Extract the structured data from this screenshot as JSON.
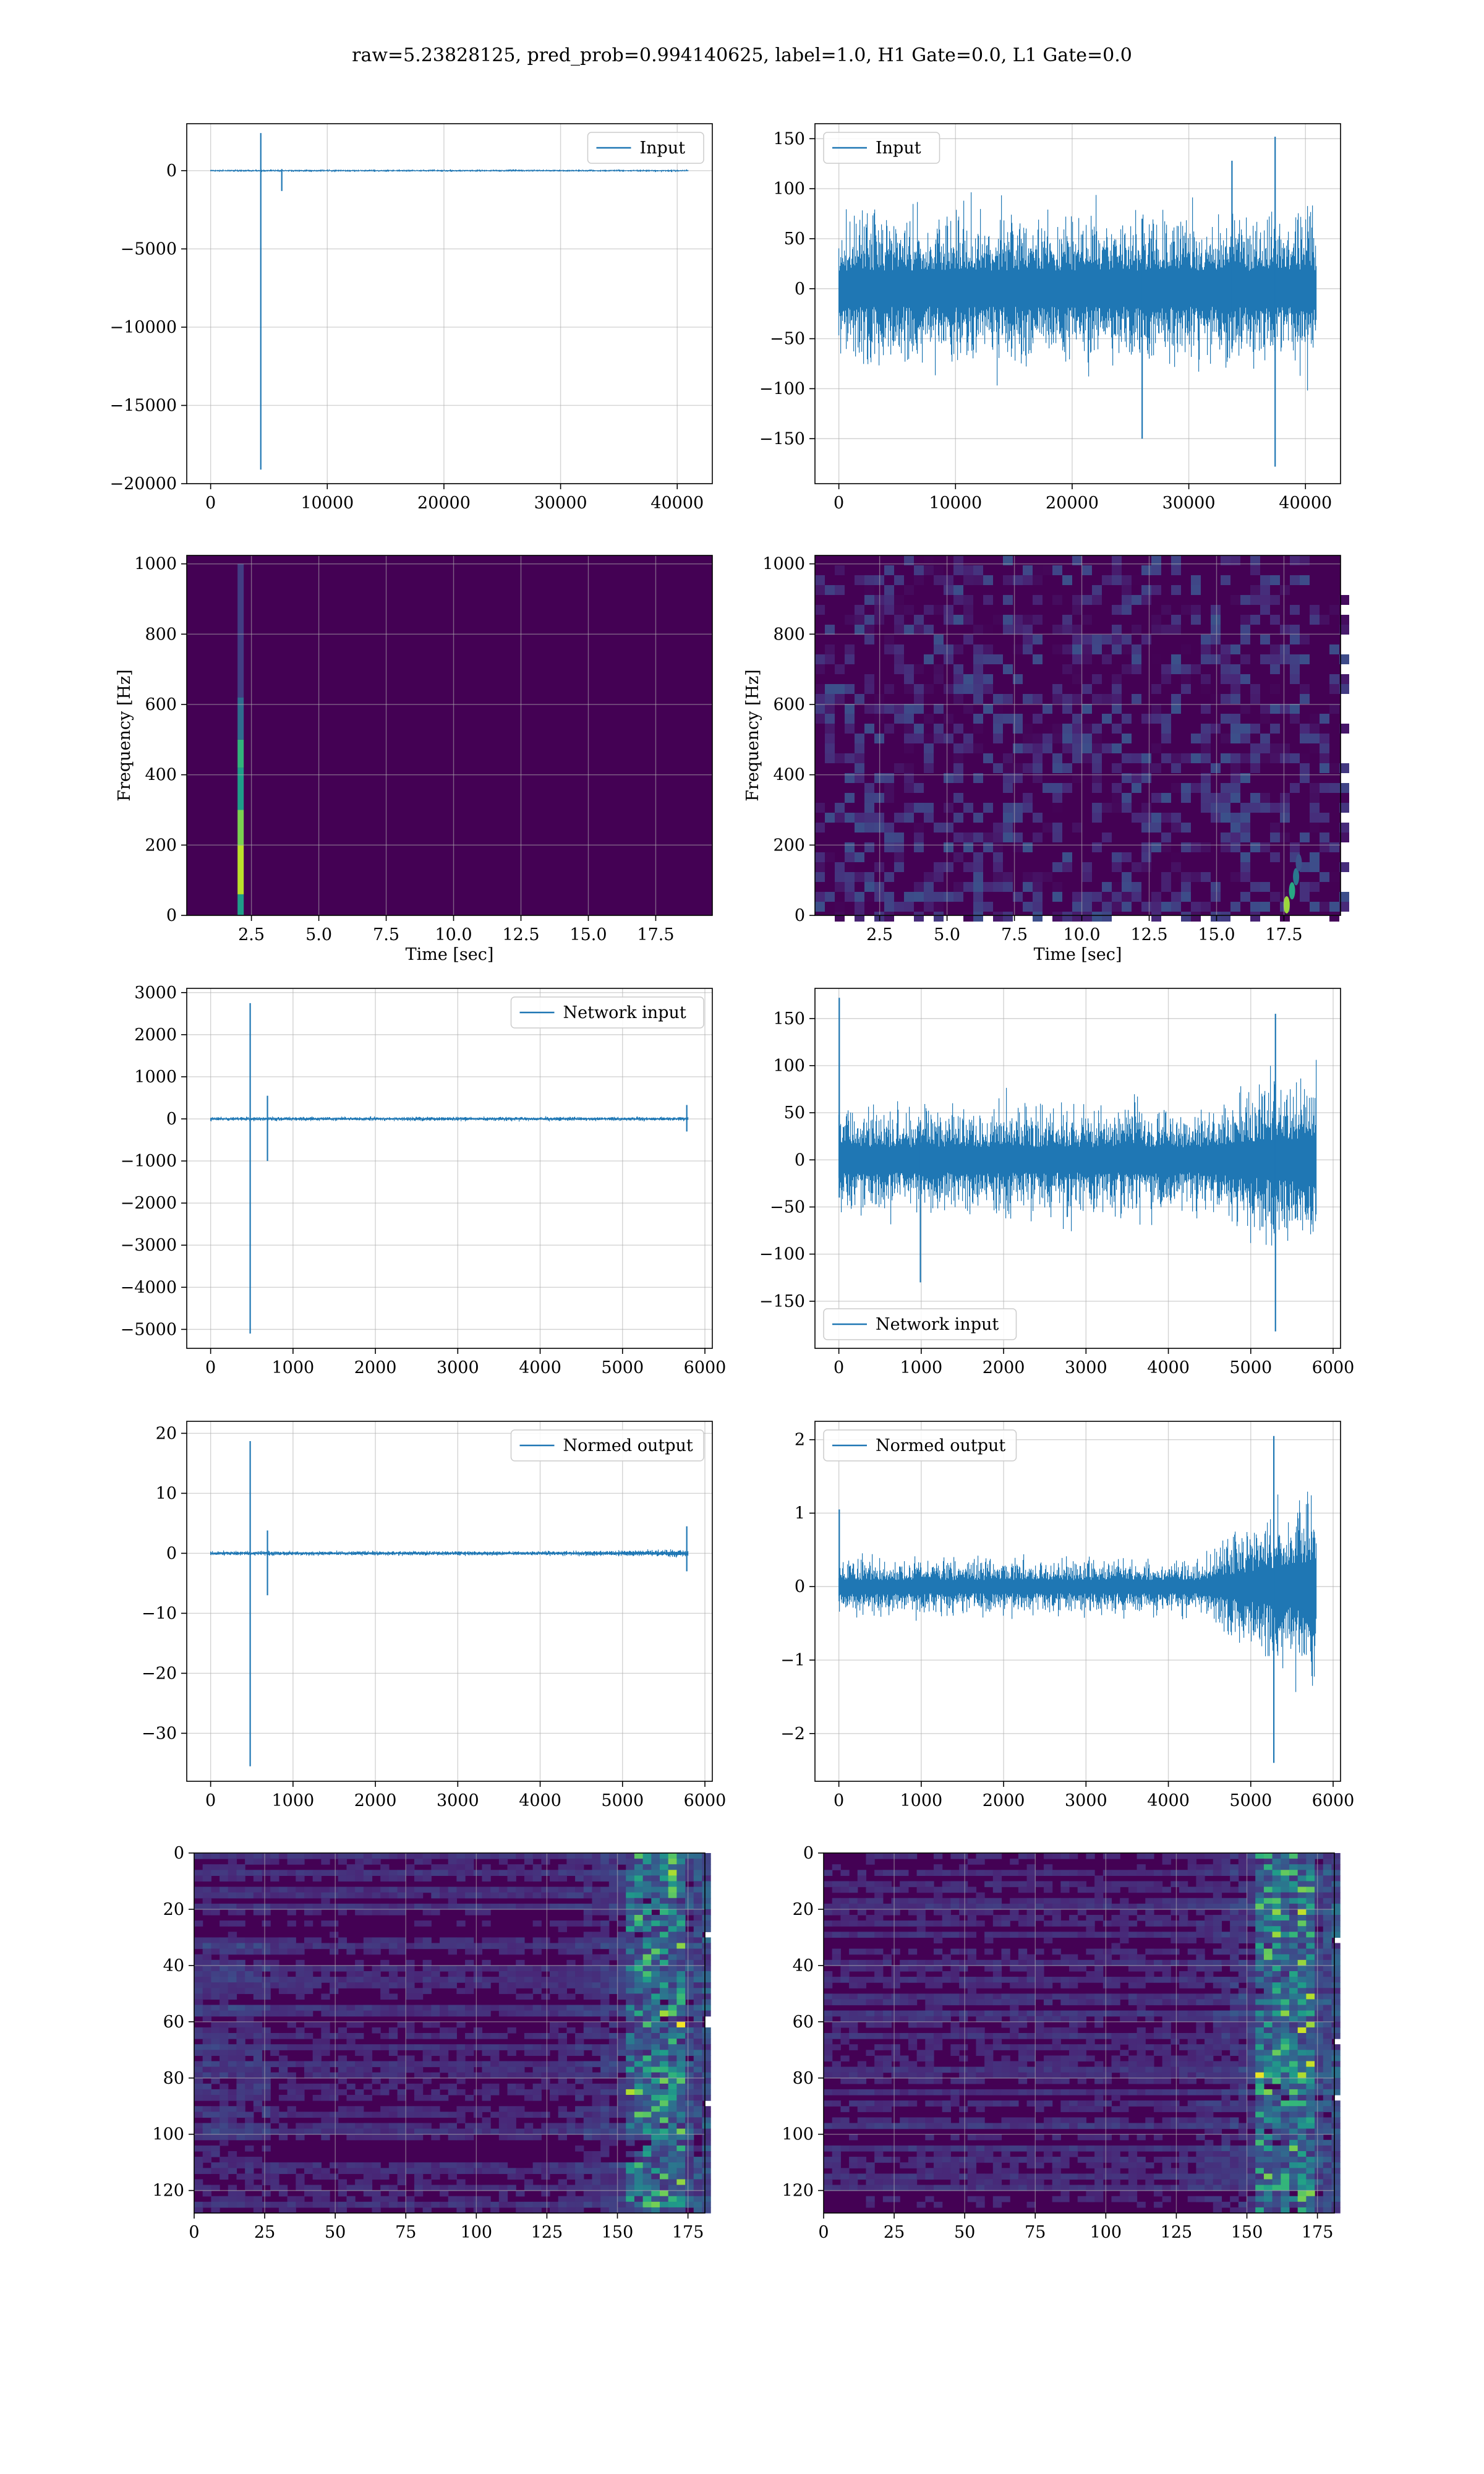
{
  "figure": {
    "title": "raw=5.23828125, pred_prob=0.994140625, label=1.0, H1 Gate=0.0, L1 Gate=0.0"
  },
  "colors": {
    "line": "#1f77b4",
    "viridis_dark": "#440154",
    "grid": "#b0b0b0"
  },
  "chart_data": [
    {
      "id": "p11",
      "type": "line",
      "legend": "Input",
      "legend_position": "upper right",
      "grid": true,
      "xlim": [
        -2048,
        43008
      ],
      "ylim": [
        -20000,
        3000
      ],
      "xticks": [
        0,
        10000,
        20000,
        30000,
        40000
      ],
      "yticks": [
        0,
        -5000,
        -10000,
        -15000,
        -20000
      ],
      "x_range": [
        0,
        40960
      ],
      "noise_amplitude": 60,
      "spikes": [
        {
          "x": 4300,
          "min": -19100,
          "max": 2400
        },
        {
          "x": 6100,
          "min": -1300,
          "max": 100
        }
      ]
    },
    {
      "id": "p12",
      "type": "line",
      "legend": "Input",
      "legend_position": "upper left",
      "grid": true,
      "xlim": [
        -2048,
        43008
      ],
      "ylim": [
        -195,
        165
      ],
      "xticks": [
        0,
        10000,
        20000,
        30000,
        40000
      ],
      "yticks": [
        150,
        100,
        50,
        0,
        -50,
        -100,
        -150
      ],
      "x_range": [
        0,
        40960
      ],
      "noise_amplitude": 60,
      "spikes": [
        {
          "x": 26000,
          "min": -150,
          "max": 70
        },
        {
          "x": 37400,
          "min": -178,
          "max": 152
        },
        {
          "x": 33700,
          "min": -60,
          "max": 128
        }
      ]
    },
    {
      "id": "p21",
      "type": "heatmap",
      "xlabel": "Time [sec]",
      "ylabel": "Frequency [Hz]",
      "grid": true,
      "xlim": [
        0.1,
        19.6
      ],
      "ylim": [
        0,
        1024
      ],
      "xticks": [
        2.5,
        5.0,
        7.5,
        10.0,
        12.5,
        15.0,
        17.5
      ],
      "yticks": [
        0,
        200,
        400,
        600,
        800,
        1000
      ],
      "event_time": 2.1
    },
    {
      "id": "p22",
      "type": "heatmap",
      "xlabel": "Time [sec]",
      "ylabel": "Frequency [Hz]",
      "grid": true,
      "xlim": [
        0.1,
        19.6
      ],
      "ylim": [
        0,
        1024
      ],
      "xticks": [
        2.5,
        5.0,
        7.5,
        10.0,
        12.5,
        15.0,
        17.5
      ],
      "yticks": [
        0,
        200,
        400,
        600,
        800,
        1000
      ],
      "event_time": 18.0
    },
    {
      "id": "p31",
      "type": "line",
      "legend": "Network input",
      "legend_position": "upper right",
      "grid": true,
      "xlim": [
        -290,
        6090
      ],
      "ylim": [
        -5450,
        3100
      ],
      "xticks": [
        0,
        1000,
        2000,
        3000,
        4000,
        5000,
        6000
      ],
      "yticks": [
        3000,
        2000,
        1000,
        0,
        -1000,
        -2000,
        -3000,
        -4000,
        -5000
      ],
      "x_range": [
        0,
        5800
      ],
      "noise_amplitude": 40,
      "spikes": [
        {
          "x": 480,
          "min": -5100,
          "max": 2750
        },
        {
          "x": 690,
          "min": -1000,
          "max": 550
        },
        {
          "x": 5780,
          "min": -300,
          "max": 330
        }
      ]
    },
    {
      "id": "p32",
      "type": "line",
      "legend": "Network input",
      "legend_position": "lower left",
      "grid": true,
      "xlim": [
        -290,
        6090
      ],
      "ylim": [
        -200,
        182
      ],
      "xticks": [
        0,
        1000,
        2000,
        3000,
        4000,
        5000,
        6000
      ],
      "yticks": [
        150,
        100,
        50,
        0,
        -50,
        -100,
        -150
      ],
      "x_range": [
        0,
        5800
      ],
      "noise_amplitude": 45,
      "spikes": [
        {
          "x": 5,
          "min": -40,
          "max": 172
        },
        {
          "x": 990,
          "min": -130,
          "max": 40
        },
        {
          "x": 5300,
          "min": -182,
          "max": 155
        }
      ]
    },
    {
      "id": "p41",
      "type": "line",
      "legend": "Normed output",
      "legend_position": "upper right",
      "grid": true,
      "xlim": [
        -290,
        6090
      ],
      "ylim": [
        -38,
        22
      ],
      "xticks": [
        0,
        1000,
        2000,
        3000,
        4000,
        5000,
        6000
      ],
      "yticks": [
        20,
        10,
        0,
        -10,
        -20,
        -30
      ],
      "x_range": [
        0,
        5800
      ],
      "noise_amplitude": 0.3,
      "spikes": [
        {
          "x": 480,
          "min": -35.5,
          "max": 18.7
        },
        {
          "x": 690,
          "min": -7,
          "max": 3.8
        },
        {
          "x": 5780,
          "min": -3,
          "max": 4.5
        }
      ]
    },
    {
      "id": "p42",
      "type": "line",
      "legend": "Normed output",
      "legend_position": "upper left",
      "grid": true,
      "xlim": [
        -290,
        6090
      ],
      "ylim": [
        -2.65,
        2.25
      ],
      "xticks": [
        0,
        1000,
        2000,
        3000,
        4000,
        5000,
        6000
      ],
      "yticks": [
        2,
        1,
        0,
        -1,
        -2
      ],
      "x_range": [
        0,
        5800
      ],
      "noise_amplitude": 0.3,
      "spikes": [
        {
          "x": 5,
          "min": -0.2,
          "max": 1.05
        },
        {
          "x": 5280,
          "min": -2.4,
          "max": 2.05
        }
      ]
    },
    {
      "id": "p51",
      "type": "heatmap",
      "grid": true,
      "xlim": [
        0,
        181
      ],
      "ylim": [
        128,
        0
      ],
      "xticks": [
        0,
        25,
        50,
        75,
        100,
        125,
        150,
        175
      ],
      "yticks": [
        0,
        20,
        40,
        60,
        80,
        100,
        120
      ]
    },
    {
      "id": "p52",
      "type": "heatmap",
      "grid": true,
      "xlim": [
        0,
        181
      ],
      "ylim": [
        128,
        0
      ],
      "xticks": [
        0,
        25,
        50,
        75,
        100,
        125,
        150,
        175
      ],
      "yticks": [
        0,
        20,
        40,
        60,
        80,
        100,
        120
      ]
    }
  ]
}
